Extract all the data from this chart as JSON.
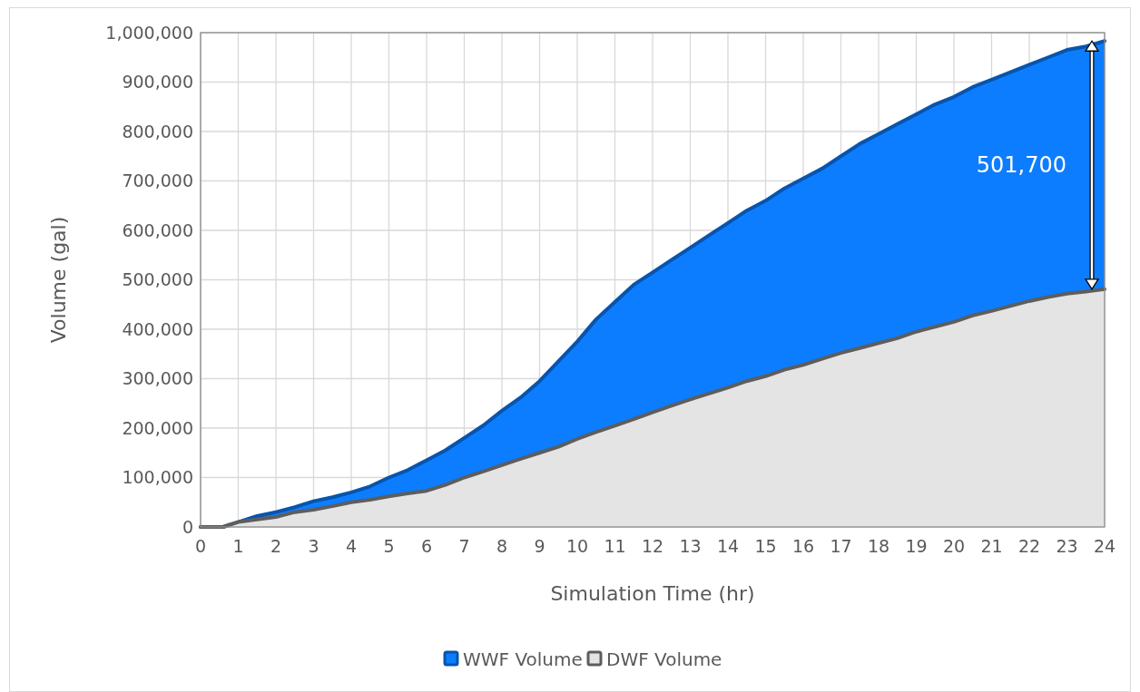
{
  "chart_data": {
    "type": "area",
    "xlabel": "Simulation Time (hr)",
    "ylabel": "Volume (gal)",
    "x": [
      0,
      0.5,
      0.6,
      1,
      1.5,
      2,
      2.5,
      3,
      3.5,
      4,
      4.5,
      5,
      5.5,
      6,
      6.5,
      7,
      7.5,
      8,
      8.5,
      9,
      9.5,
      10,
      10.5,
      11,
      11.5,
      12,
      12.5,
      13,
      13.5,
      14,
      14.5,
      15,
      15.5,
      16,
      16.5,
      17,
      17.5,
      18,
      18.5,
      19,
      19.5,
      20,
      20.5,
      21,
      21.5,
      22,
      22.5,
      23,
      23.5,
      24
    ],
    "series": [
      {
        "name": "WWF Volume",
        "color": "#0d7dff",
        "values": [
          0,
          0,
          0,
          10000,
          22000,
          30000,
          40000,
          52000,
          60000,
          70000,
          82000,
          100000,
          115000,
          135000,
          155000,
          180000,
          205000,
          235000,
          262000,
          295000,
          335000,
          375000,
          420000,
          455000,
          490000,
          515000,
          540000,
          565000,
          590000,
          615000,
          640000,
          660000,
          685000,
          705000,
          725000,
          750000,
          775000,
          795000,
          815000,
          835000,
          855000,
          870000,
          890000,
          905000,
          920000,
          935000,
          950000,
          965000,
          972000,
          983000
        ]
      },
      {
        "name": "DWF Volume",
        "color": "#e4e4e4",
        "values": [
          0,
          0,
          0,
          10000,
          15000,
          20000,
          30000,
          35000,
          42000,
          50000,
          55000,
          62000,
          68000,
          73000,
          85000,
          100000,
          112000,
          125000,
          138000,
          150000,
          162000,
          178000,
          192000,
          205000,
          218000,
          232000,
          245000,
          258000,
          270000,
          282000,
          295000,
          305000,
          318000,
          328000,
          340000,
          352000,
          362000,
          372000,
          382000,
          395000,
          405000,
          415000,
          428000,
          437000,
          447000,
          457000,
          465000,
          472000,
          476000,
          481000
        ]
      }
    ],
    "xlim": [
      0,
      24
    ],
    "xticks": [
      0,
      1,
      2,
      3,
      4,
      5,
      6,
      7,
      8,
      9,
      10,
      11,
      12,
      13,
      14,
      15,
      16,
      17,
      18,
      19,
      20,
      21,
      22,
      23,
      24
    ],
    "ylim": [
      0,
      1000000
    ],
    "yticks": [
      {
        "value": 0,
        "label": "0"
      },
      {
        "value": 100000,
        "label": "100,000"
      },
      {
        "value": 200000,
        "label": "200,000"
      },
      {
        "value": 300000,
        "label": "300,000"
      },
      {
        "value": 400000,
        "label": "400,000"
      },
      {
        "value": 500000,
        "label": "500,000"
      },
      {
        "value": 600000,
        "label": "600,000"
      },
      {
        "value": 700000,
        "label": "700,000"
      },
      {
        "value": 800000,
        "label": "800,000"
      },
      {
        "value": 900000,
        "label": "900,000"
      },
      {
        "value": 1000000,
        "label": "1,000,000"
      }
    ],
    "grid": true,
    "legend": "bottom",
    "line_style": "solid",
    "annotations": [
      "501,700"
    ]
  }
}
